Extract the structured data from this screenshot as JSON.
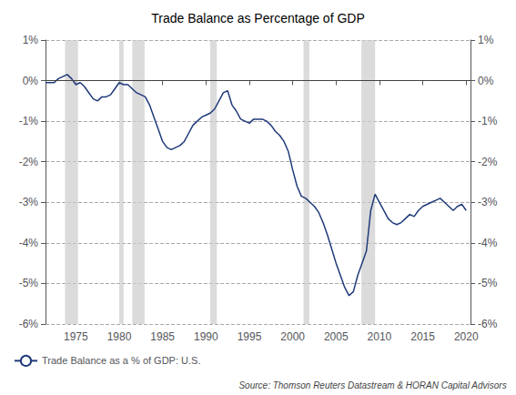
{
  "chart_data": {
    "type": "line",
    "title": "Trade Balance as Percentage of GDP",
    "source": "Source: Thomson Reuters Datastream & HORAN Capital Advisors",
    "x": [
      1971.5,
      1972.0,
      1972.5,
      1973.0,
      1973.5,
      1974.0,
      1974.5,
      1975.0,
      1975.5,
      1976.0,
      1976.5,
      1977.0,
      1977.5,
      1978.0,
      1978.5,
      1979.0,
      1979.5,
      1980.0,
      1980.5,
      1981.0,
      1981.5,
      1982.0,
      1982.5,
      1983.0,
      1983.5,
      1984.0,
      1984.5,
      1985.0,
      1985.5,
      1986.0,
      1986.5,
      1987.0,
      1987.5,
      1988.0,
      1988.5,
      1989.0,
      1989.5,
      1990.0,
      1990.5,
      1991.0,
      1991.5,
      1992.0,
      1992.5,
      1993.0,
      1993.5,
      1994.0,
      1994.5,
      1995.0,
      1995.5,
      1996.0,
      1996.5,
      1997.0,
      1997.5,
      1998.0,
      1998.5,
      1999.0,
      1999.5,
      2000.0,
      2000.5,
      2001.0,
      2001.5,
      2002.0,
      2002.5,
      2003.0,
      2003.5,
      2004.0,
      2004.5,
      2005.0,
      2005.5,
      2006.0,
      2006.5,
      2007.0,
      2007.5,
      2008.0,
      2008.5,
      2009.0,
      2009.5,
      2010.0,
      2010.5,
      2011.0,
      2011.5,
      2012.0,
      2012.5,
      2013.0,
      2013.5,
      2014.0,
      2014.5,
      2015.0,
      2015.5,
      2016.0,
      2016.5,
      2017.0,
      2017.5,
      2018.0,
      2018.5,
      2019.0,
      2019.5,
      2020.0
    ],
    "series": [
      {
        "name": "Trade Balance as a % of GDP: U.S.",
        "color": "#1f3a7a",
        "values": [
          -0.05,
          -0.05,
          -0.05,
          0.05,
          0.1,
          0.15,
          0.05,
          -0.1,
          -0.05,
          -0.15,
          -0.3,
          -0.45,
          -0.5,
          -0.4,
          -0.4,
          -0.35,
          -0.2,
          -0.05,
          -0.1,
          -0.1,
          -0.2,
          -0.3,
          -0.35,
          -0.4,
          -0.6,
          -0.9,
          -1.2,
          -1.5,
          -1.65,
          -1.7,
          -1.65,
          -1.6,
          -1.5,
          -1.3,
          -1.1,
          -1.0,
          -0.9,
          -0.85,
          -0.8,
          -0.7,
          -0.5,
          -0.3,
          -0.25,
          -0.6,
          -0.75,
          -0.95,
          -1.0,
          -1.05,
          -0.95,
          -0.95,
          -0.95,
          -1.0,
          -1.1,
          -1.25,
          -1.35,
          -1.5,
          -1.75,
          -2.2,
          -2.6,
          -2.85,
          -2.9,
          -3.0,
          -3.1,
          -3.25,
          -3.5,
          -3.8,
          -4.15,
          -4.5,
          -4.8,
          -5.1,
          -5.3,
          -5.2,
          -4.8,
          -4.5,
          -4.2,
          -3.2,
          -2.8,
          -3.0,
          -3.2,
          -3.4,
          -3.5,
          -3.55,
          -3.5,
          -3.4,
          -3.3,
          -3.35,
          -3.2,
          -3.1,
          -3.05,
          -3.0,
          -2.95,
          -2.9,
          -3.0,
          -3.1,
          -3.2,
          -3.1,
          -3.05,
          -3.2
        ]
      }
    ],
    "bands": [
      [
        1973.75,
        1975.25
      ],
      [
        1980.0,
        1980.5
      ],
      [
        1981.5,
        1982.92
      ],
      [
        1990.5,
        1991.25
      ],
      [
        2001.25,
        2001.92
      ],
      [
        2007.92,
        2009.5
      ]
    ],
    "band_color": "#cccccc",
    "reference_lines": [
      0
    ],
    "xlim": [
      1971.5,
      2020.5
    ],
    "xticks": [
      1975,
      1980,
      1985,
      1990,
      1995,
      2000,
      2005,
      2010,
      2015,
      2020
    ],
    "ylim": [
      -6,
      1
    ],
    "yticks": [
      {
        "value": 1,
        "label": "1%"
      },
      {
        "value": 0,
        "label": "0%"
      },
      {
        "value": -1,
        "label": "-1%"
      },
      {
        "value": -2,
        "label": "-2%"
      },
      {
        "value": -3,
        "label": "-3%"
      },
      {
        "value": -4,
        "label": "-4%"
      },
      {
        "value": -5,
        "label": "-5%"
      },
      {
        "value": -6,
        "label": "-6%"
      }
    ],
    "y2lim": [
      -6,
      1
    ],
    "y2ticks": [
      {
        "value": 1,
        "label": "1%"
      },
      {
        "value": 0,
        "label": "0%"
      },
      {
        "value": -1,
        "label": "-1%"
      },
      {
        "value": -2,
        "label": "-2%"
      },
      {
        "value": -3,
        "label": "-3%"
      },
      {
        "value": -4,
        "label": "-4%"
      },
      {
        "value": -5,
        "label": "-5%"
      },
      {
        "value": -6,
        "label": "-6%"
      }
    ],
    "grid": true,
    "legend": "lower left"
  }
}
